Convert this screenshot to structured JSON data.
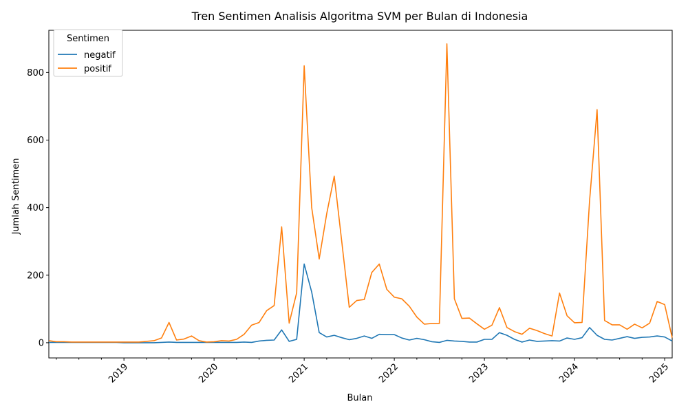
{
  "chart_data": {
    "type": "line",
    "title": "Tren Sentimen Analisis Algoritma SVM per Bulan di Indonesia",
    "xlabel": "Bulan",
    "ylabel": "Jumlah Sentimen",
    "xlim": [
      "2018-03",
      "2025-02"
    ],
    "ylim": [
      -45,
      925
    ],
    "x_ticks": [
      "2019",
      "2020",
      "2021",
      "2022",
      "2023",
      "2024",
      "2025"
    ],
    "y_ticks": [
      0,
      200,
      400,
      600,
      800
    ],
    "legend": {
      "title": "Sentimen",
      "position": "upper-left"
    },
    "grid": false,
    "x": [
      "2018-03",
      "2018-04",
      "2018-05",
      "2018-06",
      "2018-07",
      "2018-08",
      "2018-09",
      "2018-10",
      "2018-11",
      "2018-12",
      "2019-01",
      "2019-02",
      "2019-03",
      "2019-04",
      "2019-05",
      "2019-06",
      "2019-07",
      "2019-08",
      "2019-09",
      "2019-10",
      "2019-11",
      "2019-12",
      "2020-01",
      "2020-02",
      "2020-03",
      "2020-04",
      "2020-05",
      "2020-06",
      "2020-07",
      "2020-08",
      "2020-09",
      "2020-10",
      "2020-11",
      "2020-12",
      "2021-01",
      "2021-02",
      "2021-03",
      "2021-04",
      "2021-05",
      "2021-06",
      "2021-07",
      "2021-08",
      "2021-09",
      "2021-10",
      "2021-11",
      "2021-12",
      "2022-01",
      "2022-02",
      "2022-03",
      "2022-04",
      "2022-05",
      "2022-06",
      "2022-07",
      "2022-08",
      "2022-09",
      "2022-10",
      "2022-11",
      "2022-12",
      "2023-01",
      "2023-02",
      "2023-03",
      "2023-04",
      "2023-05",
      "2023-06",
      "2023-07",
      "2023-08",
      "2023-09",
      "2023-10",
      "2023-11",
      "2023-12",
      "2024-01",
      "2024-02",
      "2024-03",
      "2024-04",
      "2024-05",
      "2024-06",
      "2024-07",
      "2024-08",
      "2024-09",
      "2024-10",
      "2024-11",
      "2024-12",
      "2025-01",
      "2025-02"
    ],
    "series": [
      {
        "name": "negatif",
        "color": "#1f77b4",
        "values": [
          1,
          1,
          1,
          1,
          1,
          1,
          1,
          1,
          1,
          1,
          0,
          0,
          0,
          0,
          0,
          1,
          2,
          1,
          1,
          1,
          1,
          1,
          1,
          1,
          1,
          1,
          2,
          1,
          5,
          7,
          8,
          38,
          4,
          10,
          233,
          150,
          30,
          17,
          22,
          15,
          9,
          13,
          20,
          13,
          25,
          24,
          24,
          14,
          8,
          13,
          9,
          3,
          1,
          7,
          5,
          4,
          2,
          2,
          10,
          10,
          30,
          22,
          10,
          2,
          8,
          4,
          5,
          6,
          5,
          14,
          10,
          15,
          45,
          22,
          10,
          8,
          13,
          18,
          13,
          16,
          17,
          20,
          17,
          5
        ]
      },
      {
        "name": "positif",
        "color": "#ff7f0e",
        "values": [
          6,
          3,
          3,
          2,
          2,
          2,
          2,
          2,
          2,
          2,
          2,
          2,
          2,
          4,
          6,
          14,
          60,
          8,
          11,
          20,
          6,
          2,
          3,
          6,
          5,
          10,
          25,
          52,
          60,
          95,
          110,
          343,
          58,
          148,
          820,
          400,
          248,
          382,
          493,
          300,
          105,
          125,
          128,
          208,
          233,
          158,
          135,
          130,
          108,
          76,
          55,
          57,
          57,
          885,
          130,
          72,
          73,
          56,
          40,
          52,
          104,
          45,
          33,
          25,
          43,
          36,
          27,
          20,
          147,
          80,
          59,
          60,
          420,
          690,
          66,
          53,
          53,
          40,
          55,
          44,
          58,
          122,
          113,
          15
        ]
      }
    ]
  }
}
